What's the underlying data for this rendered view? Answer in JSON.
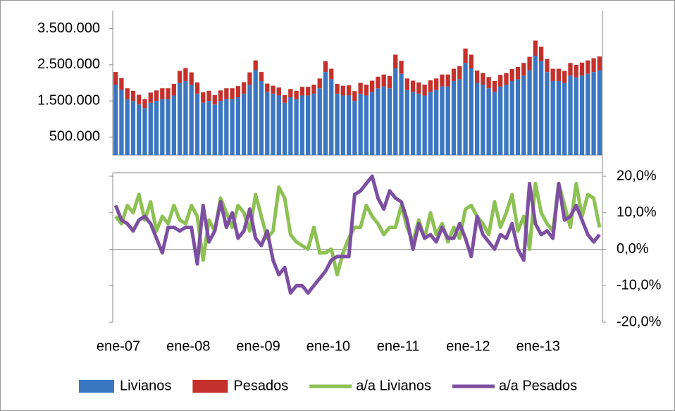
{
  "chart_data": [
    {
      "type": "bar",
      "stacked": true,
      "ylim": [
        0,
        4000000
      ],
      "yticks": [
        {
          "value": 500000,
          "label": "500.000"
        },
        {
          "value": 1500000,
          "label": "1.500.000"
        },
        {
          "value": 2500000,
          "label": "2.500.000"
        },
        {
          "value": 3500000,
          "label": "3.500.000"
        }
      ],
      "series": [
        {
          "name": "Livianos",
          "color": "#3a76c2",
          "values": [
            1950000,
            1800000,
            1550000,
            1500000,
            1400000,
            1300000,
            1450000,
            1500000,
            1550000,
            1550000,
            1650000,
            2000000,
            2050000,
            1950000,
            1700000,
            1450000,
            1500000,
            1400000,
            1500000,
            1550000,
            1550000,
            1600000,
            1700000,
            1950000,
            2350000,
            2050000,
            1750000,
            1700000,
            1650000,
            1450000,
            1600000,
            1550000,
            1650000,
            1650000,
            1700000,
            1850000,
            2300000,
            2100000,
            1700000,
            1650000,
            1650000,
            1500000,
            1700000,
            1650000,
            1750000,
            1850000,
            1900000,
            1850000,
            2400000,
            2250000,
            1800000,
            1750000,
            1700000,
            1650000,
            1750000,
            1800000,
            1900000,
            1900000,
            2050000,
            2100000,
            2550000,
            2400000,
            2000000,
            1950000,
            1850000,
            1750000,
            1900000,
            1950000,
            2050000,
            2100000,
            2200000,
            2350000,
            2750000,
            2600000,
            2300000,
            2050000,
            2050000,
            2000000,
            2200000,
            2150000,
            2200000,
            2250000,
            2300000,
            2350000
          ]
        },
        {
          "name": "Pesados",
          "color": "#c4302b",
          "values": [
            350000,
            330000,
            300000,
            280000,
            270000,
            250000,
            280000,
            290000,
            300000,
            300000,
            320000,
            330000,
            360000,
            340000,
            310000,
            290000,
            280000,
            260000,
            290000,
            300000,
            300000,
            310000,
            320000,
            340000,
            270000,
            250000,
            230000,
            220000,
            220000,
            210000,
            230000,
            230000,
            240000,
            240000,
            250000,
            270000,
            300000,
            290000,
            270000,
            270000,
            280000,
            270000,
            300000,
            300000,
            310000,
            320000,
            330000,
            340000,
            380000,
            360000,
            320000,
            310000,
            310000,
            300000,
            320000,
            320000,
            330000,
            330000,
            340000,
            360000,
            400000,
            380000,
            340000,
            320000,
            310000,
            300000,
            320000,
            320000,
            330000,
            340000,
            350000,
            370000,
            420000,
            400000,
            360000,
            340000,
            340000,
            330000,
            350000,
            350000,
            360000,
            370000,
            380000,
            380000
          ]
        }
      ]
    },
    {
      "type": "line",
      "categories": [
        "ene-07",
        null,
        null,
        null,
        null,
        null,
        null,
        null,
        null,
        null,
        null,
        null,
        "ene-08",
        null,
        null,
        null,
        null,
        null,
        null,
        null,
        null,
        null,
        null,
        null,
        "ene-09",
        null,
        null,
        null,
        null,
        null,
        null,
        null,
        null,
        null,
        null,
        null,
        "ene-10",
        null,
        null,
        null,
        null,
        null,
        null,
        null,
        null,
        null,
        null,
        null,
        "ene-11",
        null,
        null,
        null,
        null,
        null,
        null,
        null,
        null,
        null,
        null,
        null,
        "ene-12",
        null,
        null,
        null,
        null,
        null,
        null,
        null,
        null,
        null,
        null,
        null,
        "ene-13",
        null,
        null,
        null,
        null,
        null,
        null,
        null,
        null,
        null,
        null,
        null
      ],
      "y2lim": [
        -20,
        20
      ],
      "y2ticks": [
        {
          "value": 20,
          "label": "20,0%"
        },
        {
          "value": 10,
          "label": "10,0%"
        },
        {
          "value": 0,
          "label": "0,0%"
        },
        {
          "value": -10,
          "label": "-10,0%"
        },
        {
          "value": -20,
          "label": "-20,0%"
        }
      ],
      "series": [
        {
          "name": "a/a Livianos",
          "color": "#8dc153",
          "axis": "y2",
          "values": [
            9,
            7,
            12,
            10,
            15,
            8,
            13,
            5,
            9,
            7,
            12,
            8,
            7,
            12,
            9,
            -3,
            8,
            5,
            14,
            10,
            6,
            12,
            10,
            5,
            15,
            9,
            3,
            5,
            17,
            14,
            4,
            2,
            1,
            0,
            6,
            -1,
            -1,
            0,
            -7,
            -1,
            3,
            6,
            6,
            12,
            9,
            7,
            4,
            6,
            6,
            12,
            6,
            2,
            8,
            3,
            10,
            4,
            7,
            2,
            6,
            3,
            11,
            12,
            9,
            7,
            4,
            13,
            6,
            10,
            15,
            5,
            9,
            0,
            18,
            10,
            7,
            5,
            18,
            12,
            6,
            18,
            9,
            15,
            14,
            6
          ]
        },
        {
          "name": "a/a Pesados",
          "color": "#7d4fa1",
          "axis": "y2",
          "values": [
            12,
            8,
            7,
            5,
            8,
            9,
            7,
            3,
            -1,
            6,
            6,
            5,
            6,
            6,
            -4,
            12,
            2,
            5,
            13,
            6,
            10,
            3,
            5,
            11,
            3,
            1,
            5,
            -3,
            -7,
            -5,
            -12,
            -10,
            -10,
            -12,
            -10,
            -8,
            -6,
            -3,
            -2,
            -2,
            -2,
            15,
            16,
            18,
            20,
            14,
            11,
            16,
            14,
            13,
            8,
            0,
            7,
            3,
            4,
            2,
            6,
            3,
            3,
            7,
            3,
            -2,
            9,
            4,
            2,
            0,
            4,
            3,
            7,
            0,
            -3,
            18,
            7,
            4,
            5,
            3,
            18,
            8,
            9,
            12,
            8,
            4,
            2,
            4
          ]
        }
      ]
    }
  ]
}
